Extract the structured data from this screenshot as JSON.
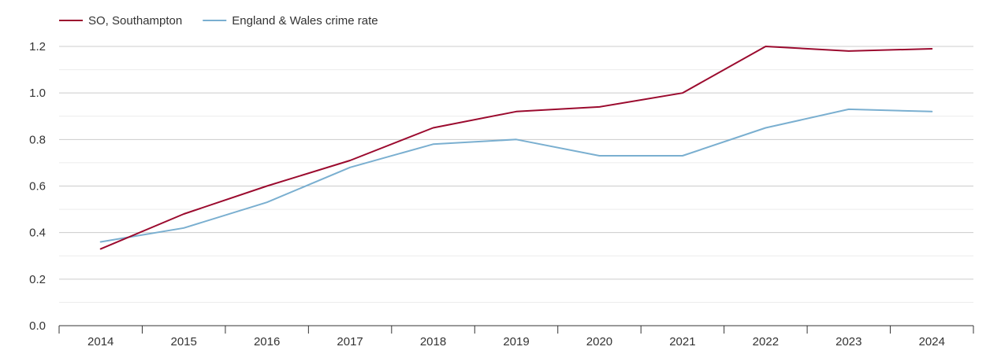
{
  "chart_data": {
    "type": "line",
    "title": "",
    "xlabel": "",
    "ylabel": "",
    "categories": [
      "2014",
      "2015",
      "2016",
      "2017",
      "2018",
      "2019",
      "2020",
      "2021",
      "2022",
      "2023",
      "2024"
    ],
    "yticks": [
      "0.0",
      "0.2",
      "0.4",
      "0.6",
      "0.8",
      "1.0",
      "1.2"
    ],
    "ylim": [
      0,
      1.2
    ],
    "grid": true,
    "legend_position": "top-left",
    "series": [
      {
        "name": "SO, Southampton",
        "color": "#9b0a2e",
        "values": [
          0.33,
          0.48,
          0.6,
          0.71,
          0.85,
          0.92,
          0.94,
          1.0,
          1.2,
          1.18,
          1.19
        ]
      },
      {
        "name": "England & Wales crime rate",
        "color": "#7aafd0",
        "values": [
          0.36,
          0.42,
          0.53,
          0.68,
          0.78,
          0.8,
          0.73,
          0.73,
          0.85,
          0.93,
          0.92
        ]
      }
    ]
  }
}
